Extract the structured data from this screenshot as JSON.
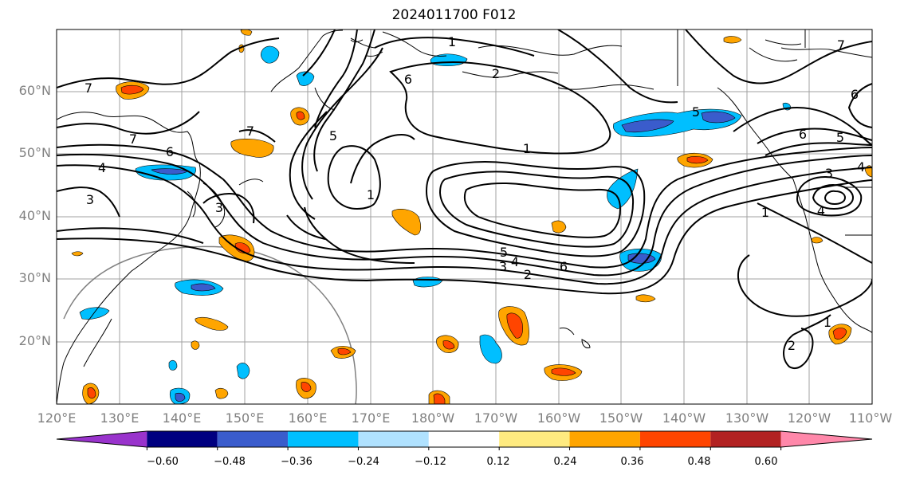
{
  "title": "2024011700 F012",
  "lat_labels": [
    "60°N",
    "50°N",
    "40°N",
    "30°N",
    "20°N"
  ],
  "lon_labels": [
    "120°E",
    "130°E",
    "140°E",
    "150°E",
    "160°E",
    "170°E",
    "180°W",
    "170°W",
    "160°W",
    "150°W",
    "140°W",
    "130°W",
    "120°W",
    "110°W"
  ],
  "colorbar": {
    "labels": [
      "−0.60",
      "−0.48",
      "−0.36",
      "−0.24",
      "−0.12",
      "0.12",
      "0.24",
      "0.36",
      "0.48",
      "0.60"
    ],
    "colors": [
      "#9933cc",
      "#000080",
      "#3a5ccc",
      "#00bfff",
      "#b0e2ff",
      "#ffffff",
      "#ffeb80",
      "#ffa500",
      "#ff4500",
      "#b22222",
      "#ff88aa"
    ]
  },
  "contour_labels": [
    "1",
    "2",
    "6",
    "7",
    "7",
    "6",
    "4",
    "3",
    "3",
    "7",
    "1",
    "1",
    "5",
    "4",
    "3",
    "2",
    "6",
    "5",
    "6",
    "5",
    "4",
    "3",
    "4",
    "1",
    "2",
    "1",
    "7",
    "5",
    "6"
  ],
  "shading_colors": {
    "blue_light": "#00bfff",
    "blue_mid": "#3a5ccc",
    "blue_dark": "#000080",
    "orange": "#ffa500",
    "red": "#ff4500",
    "yellow": "#ffeb80"
  }
}
